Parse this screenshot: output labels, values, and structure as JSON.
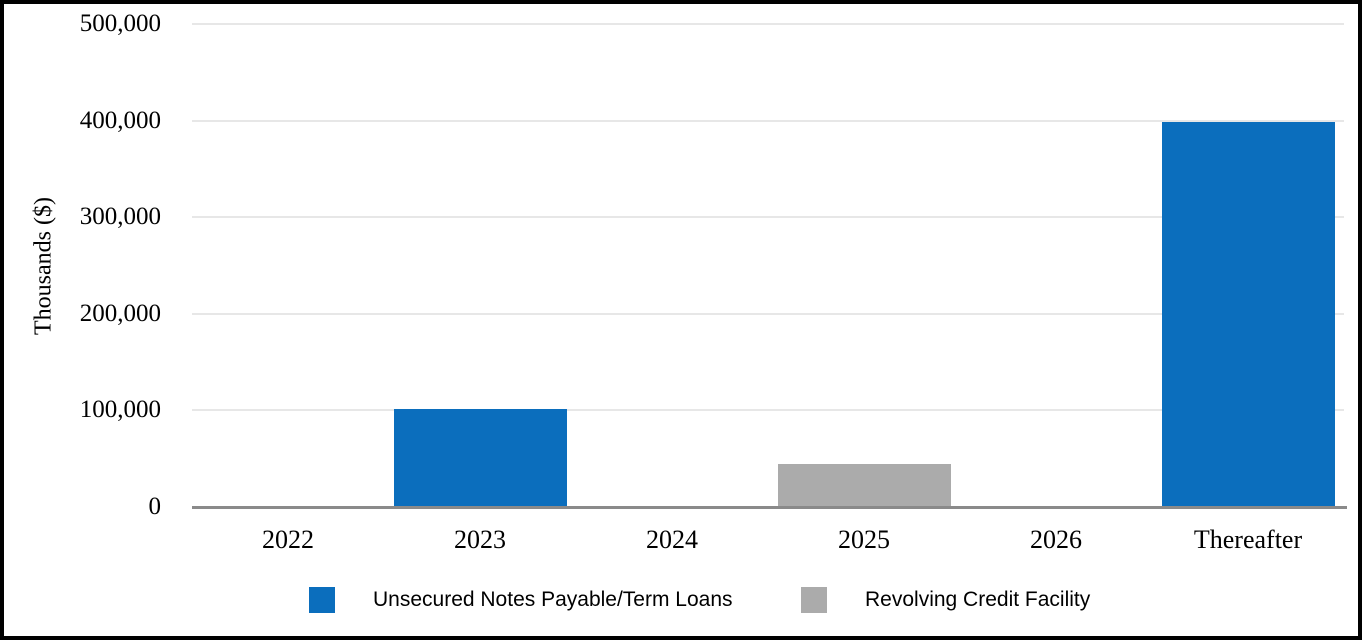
{
  "figure": {
    "background_color": "#ffffff",
    "border_color": "#000000",
    "gridline_color": "#e7e7e7",
    "axisline_color": "#8a8a8a"
  },
  "chart_data": {
    "type": "bar",
    "title": "",
    "xlabel": "",
    "ylabel": "Thousands ($)",
    "categories": [
      "2022",
      "2023",
      "2024",
      "2025",
      "2026",
      "Thereafter"
    ],
    "series": [
      {
        "name": "Unsecured Notes Payable/Term Loans",
        "color": "#0b6ebd",
        "values": [
          0,
          100000,
          0,
          0,
          0,
          398000
        ]
      },
      {
        "name": "Revolving Credit Facility",
        "color": "#ababab",
        "values": [
          0,
          0,
          0,
          43000,
          0,
          0
        ]
      }
    ],
    "ylim": [
      0,
      500000
    ],
    "yticks": [
      0,
      100000,
      200000,
      300000,
      400000,
      500000
    ],
    "ytick_labels": [
      "0",
      "100,000",
      "200,000",
      "300,000",
      "400,000",
      "500,000"
    ],
    "grid": "horizontal",
    "legend_position": "bottom"
  }
}
